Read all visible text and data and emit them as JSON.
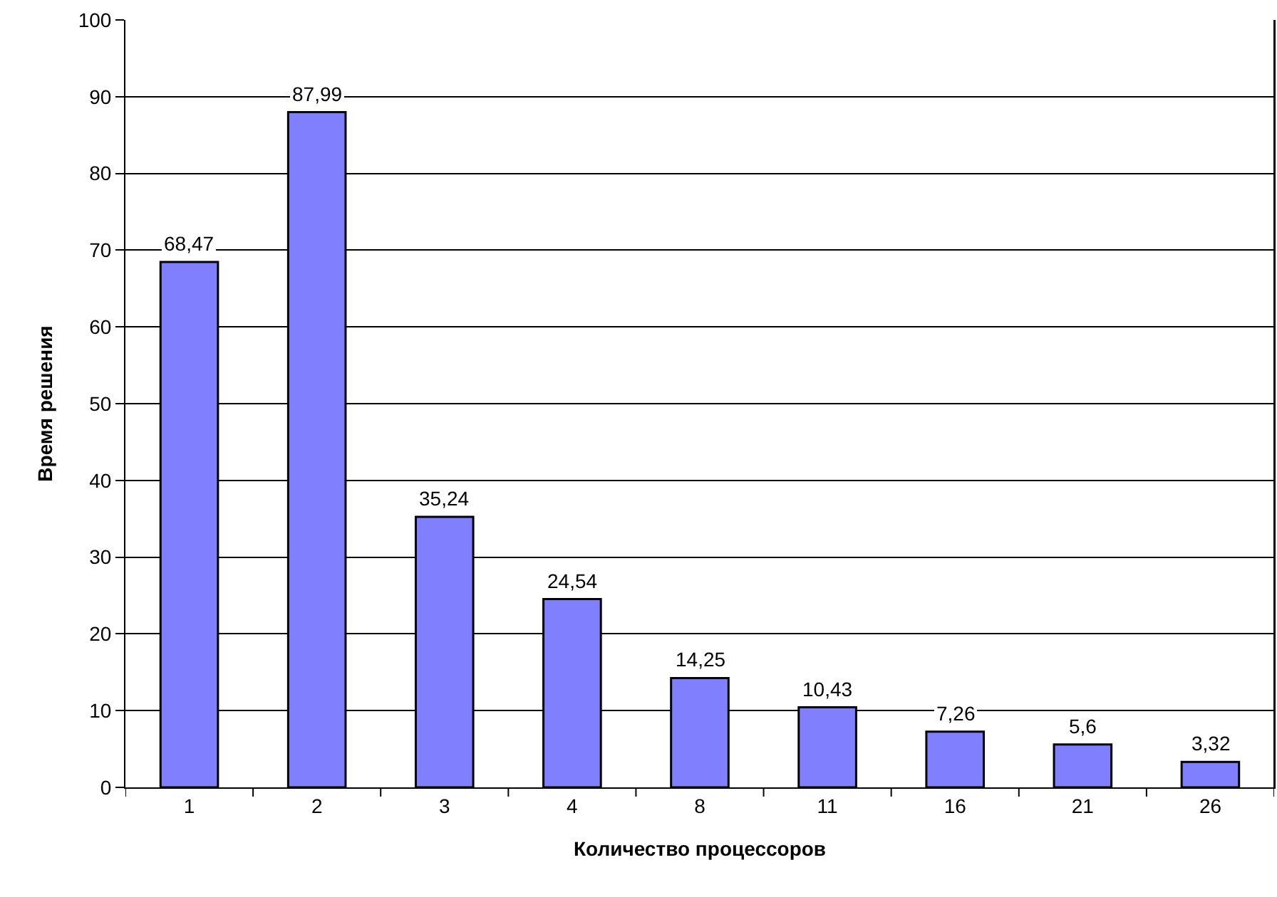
{
  "chart_data": {
    "type": "bar",
    "xlabel": "Количество процессоров",
    "ylabel": "Время решения",
    "categories": [
      "1",
      "2",
      "3",
      "4",
      "8",
      "11",
      "16",
      "21",
      "26"
    ],
    "values": [
      68.47,
      87.99,
      35.24,
      24.54,
      14.25,
      10.43,
      7.26,
      5.6,
      3.32
    ],
    "value_labels": [
      "68,47",
      "87,99",
      "35,24",
      "24,54",
      "14,25",
      "10,43",
      "7,26",
      "5,6",
      "3,32"
    ],
    "color": "#8080ff",
    "ylim": [
      0,
      100
    ],
    "yticks": [
      0,
      10,
      20,
      30,
      40,
      50,
      60,
      70,
      80,
      90,
      100
    ],
    "grid": "y",
    "legend": false
  }
}
